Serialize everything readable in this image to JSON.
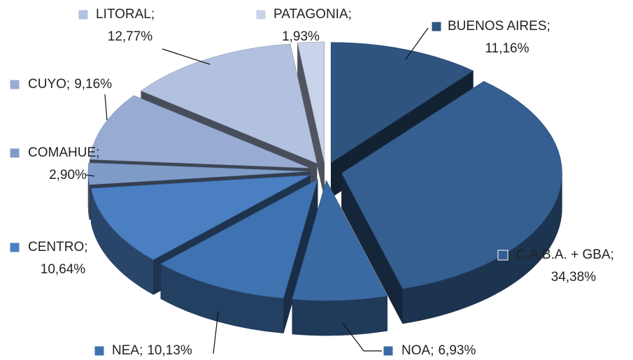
{
  "chart_data": {
    "type": "pie",
    "categories": [
      "BUENOS AIRES",
      "C.A.B.A. + GBA",
      "NOA",
      "NEA",
      "CENTRO",
      "COMAHUE",
      "CUYO",
      "LITORAL",
      "PATAGONIA"
    ],
    "values": [
      11.16,
      34.38,
      6.93,
      10.13,
      10.64,
      2.9,
      9.16,
      12.77,
      1.93
    ],
    "value_labels": [
      "11,16%",
      "34,38%",
      "6,93%",
      "10,13%",
      "10,64%",
      "2,90%",
      "9,16%",
      "12,77%",
      "1,93%"
    ],
    "separator": ";",
    "colors": [
      "#2f5480",
      "#355f91",
      "#3a6aa3",
      "#3f72b0",
      "#4a7fc1",
      "#7f9cc9",
      "#98acd3",
      "#b3c1e0",
      "#c9d3ea"
    ],
    "three_d": true,
    "exploded": true
  }
}
